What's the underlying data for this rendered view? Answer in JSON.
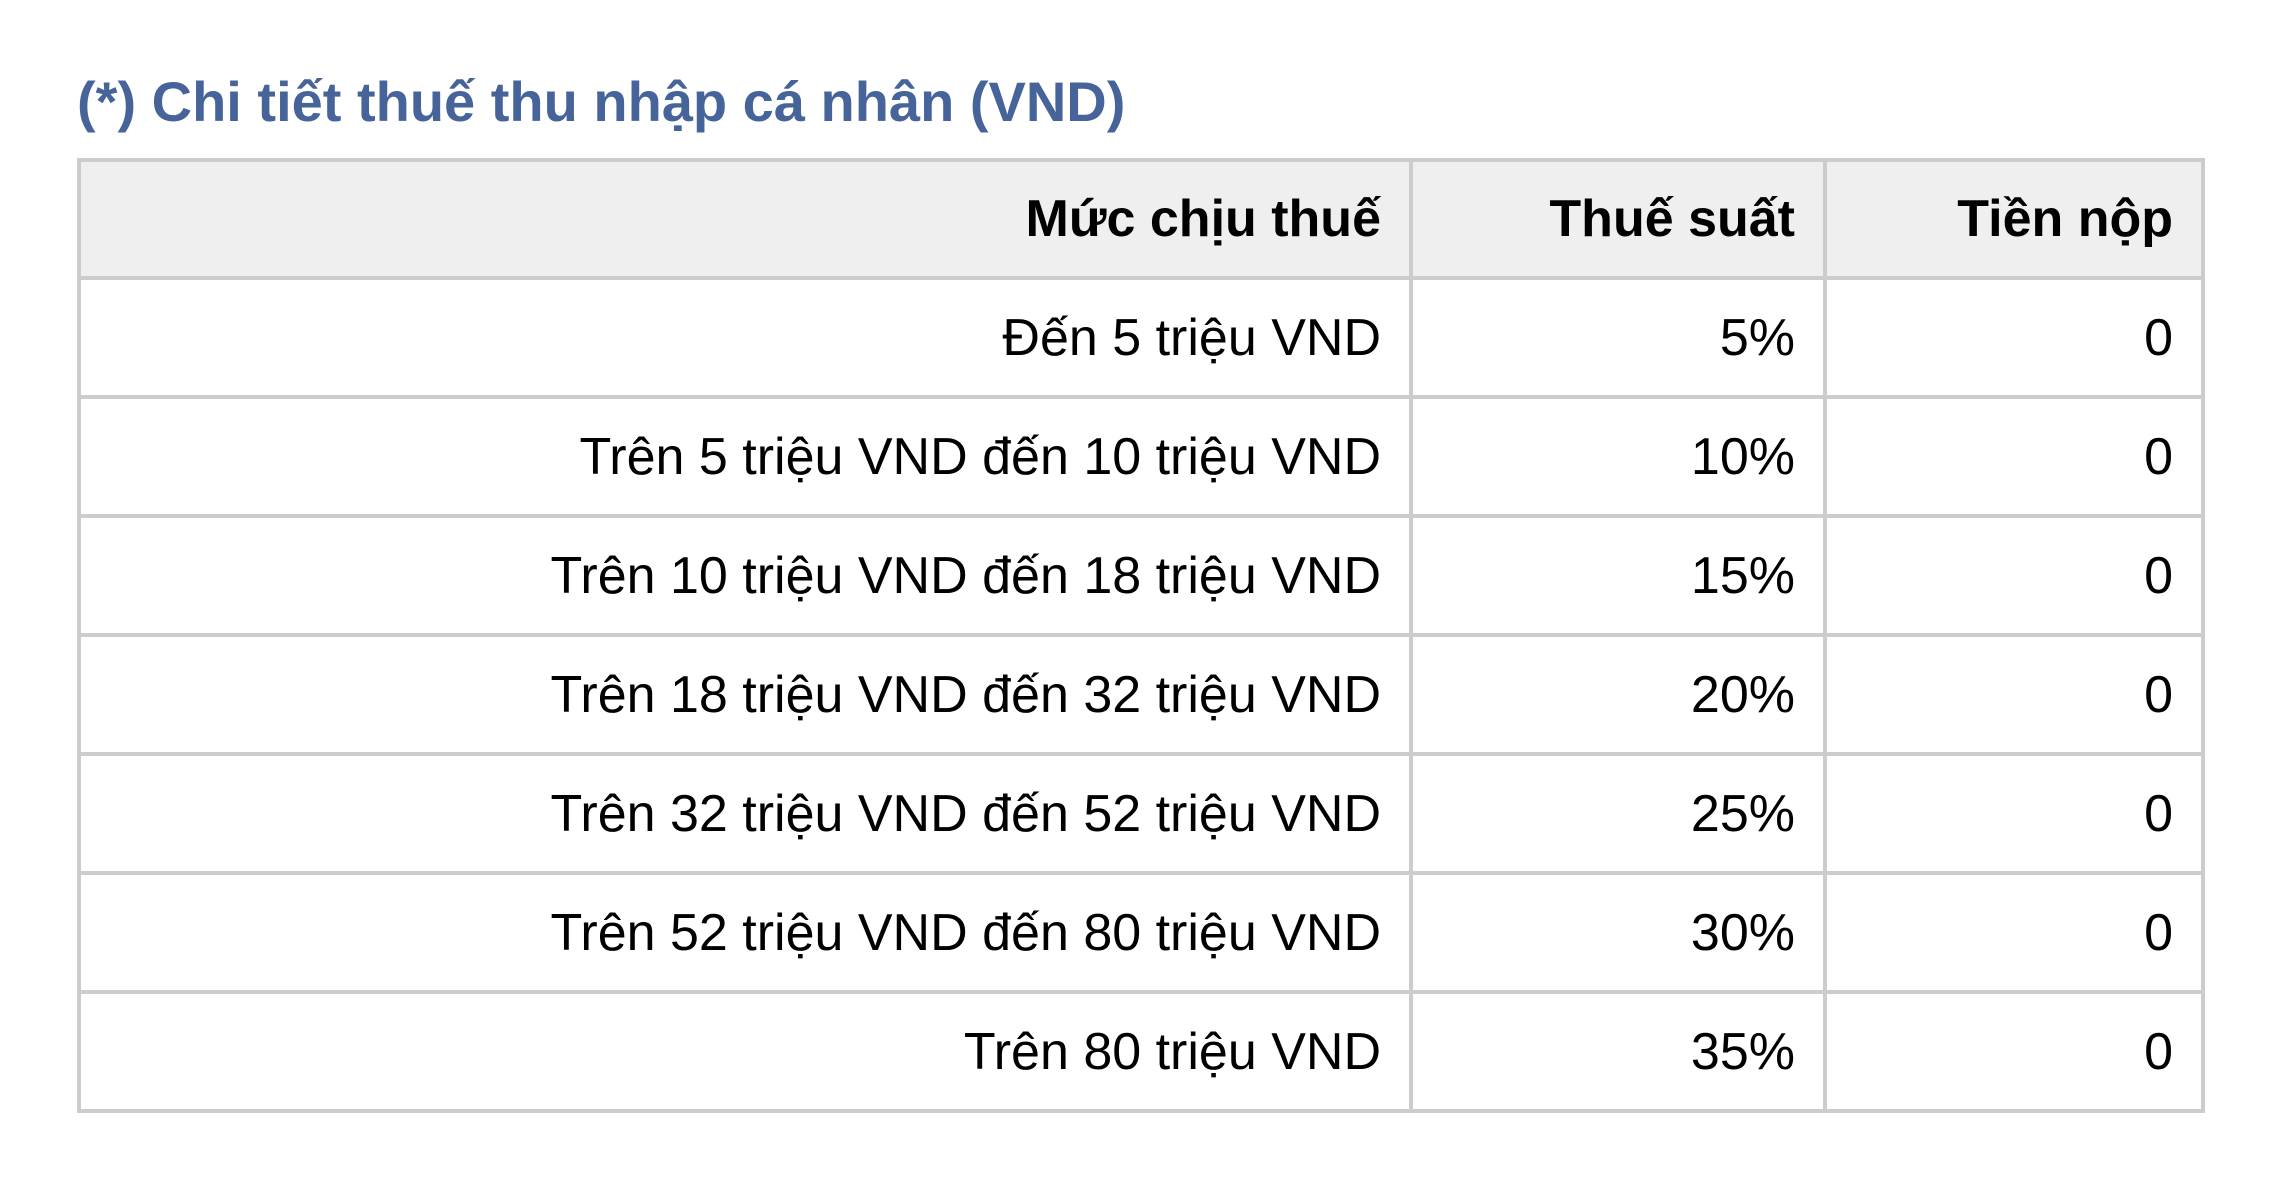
{
  "title": {
    "text": "(*) Chi tiết thuế thu nhập cá nhân (VND)",
    "color": "#46649a"
  },
  "table": {
    "headers": [
      "Mức chịu thuế",
      "Thuế suất",
      "Tiền nộp"
    ],
    "rows": [
      [
        "Đến 5 triệu VND",
        "5%",
        "0"
      ],
      [
        "Trên 5 triệu VND đến 10 triệu VND",
        "10%",
        "0"
      ],
      [
        "Trên 10 triệu VND đến 18 triệu VND",
        "15%",
        "0"
      ],
      [
        "Trên 18 triệu VND đến 32 triệu VND",
        "20%",
        "0"
      ],
      [
        "Trên 32 triệu VND đến 52 triệu VND",
        "25%",
        "0"
      ],
      [
        "Trên 52 triệu VND đến 80 triệu VND",
        "30%",
        "0"
      ],
      [
        "Trên 80 triệu VND",
        "35%",
        "0"
      ]
    ],
    "header_background": "#efefef",
    "border_color": "#cccccc"
  }
}
